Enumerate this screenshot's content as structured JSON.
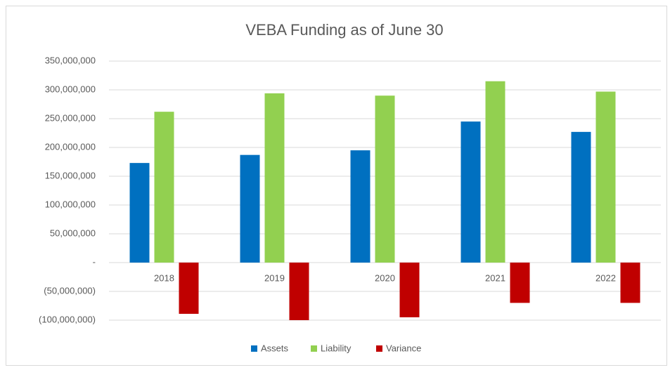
{
  "chart_data": {
    "type": "bar",
    "title": "VEBA Funding as of June 30",
    "categories": [
      "2018",
      "2019",
      "2020",
      "2021",
      "2022"
    ],
    "series": [
      {
        "name": "Assets",
        "color": "#0070c0",
        "values": [
          173000000,
          187000000,
          195000000,
          245000000,
          227000000
        ]
      },
      {
        "name": "Liability",
        "color": "#92d050",
        "values": [
          262000000,
          294000000,
          290000000,
          315000000,
          297000000
        ]
      },
      {
        "name": "Variance",
        "color": "#c00000",
        "values": [
          -89000000,
          -107000000,
          -95000000,
          -70000000,
          -70000000
        ]
      }
    ],
    "ylim": [
      -100000000,
      350000000
    ],
    "yticks": [
      {
        "value": -100000000,
        "label": "(100,000,000)"
      },
      {
        "value": -50000000,
        "label": "(50,000,000)"
      },
      {
        "value": 0,
        "label": "-"
      },
      {
        "value": 50000000,
        "label": "50,000,000"
      },
      {
        "value": 100000000,
        "label": "100,000,000"
      },
      {
        "value": 150000000,
        "label": "150,000,000"
      },
      {
        "value": 200000000,
        "label": "200,000,000"
      },
      {
        "value": 250000000,
        "label": "250,000,000"
      },
      {
        "value": 300000000,
        "label": "300,000,000"
      },
      {
        "value": 350000000,
        "label": "350,000,000"
      }
    ],
    "grid": true,
    "legend": "bottom"
  }
}
